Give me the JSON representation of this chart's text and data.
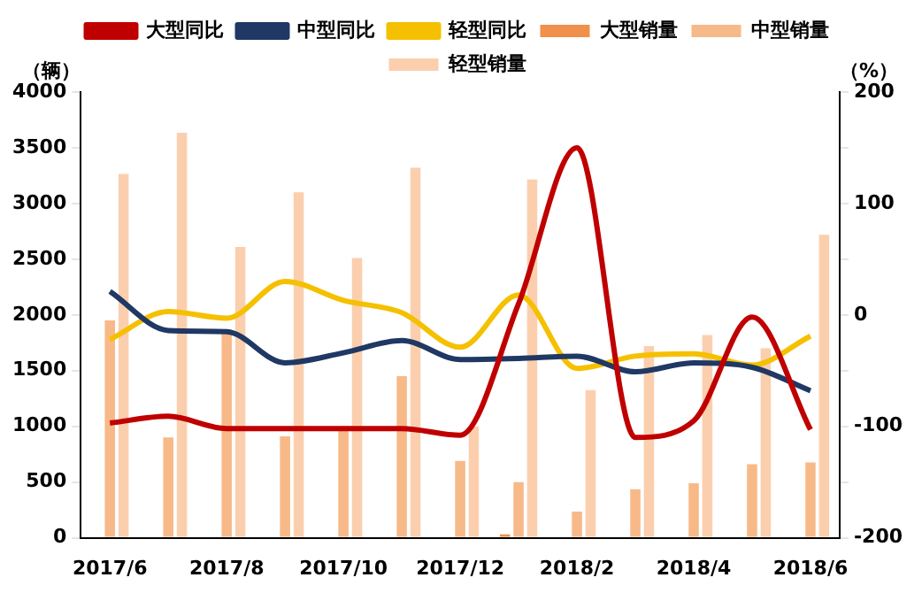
{
  "chart_data": {
    "type": "bar",
    "ylabel": "（辆）",
    "y2label": "（%）",
    "categories": [
      "2017/6",
      null,
      "2017/8",
      null,
      "2017/10",
      null,
      "2017/12",
      null,
      "2018/2",
      null,
      "2018/4",
      null,
      "2018/6"
    ],
    "series": [
      {
        "name": "大型销量",
        "color": "#f0904a",
        "values": [
          0,
          0,
          0,
          0,
          0,
          0,
          0,
          30,
          0,
          0,
          0,
          0,
          0
        ]
      },
      {
        "name": "中型销量",
        "color": "#f8b988",
        "values": [
          1950,
          900,
          1850,
          910,
          1000,
          1450,
          690,
          500,
          235,
          435,
          490,
          660,
          675
        ]
      },
      {
        "name": "轻型销量",
        "color": "#fbcfae",
        "values": [
          3265,
          3635,
          2610,
          3100,
          2510,
          3320,
          1000,
          3215,
          1325,
          1720,
          1820,
          1700,
          2720
        ]
      },
      {
        "name": "大型同比",
        "type": "line",
        "axis": "y2",
        "color": "#c00000",
        "values": [
          -97,
          -91,
          -102,
          -102,
          -102,
          -102,
          -108,
          10,
          150,
          -110,
          -95,
          -2,
          -103
        ]
      },
      {
        "name": "中型同比",
        "type": "line",
        "axis": "y2",
        "color": "#1f3864",
        "values": [
          21,
          -14,
          -15,
          -43,
          -34,
          -23,
          -40,
          -39,
          -37,
          -51,
          -43,
          -47,
          -68
        ]
      },
      {
        "name": "轻型同比",
        "type": "line",
        "axis": "y2",
        "color": "#f5c000",
        "values": [
          -22,
          3,
          -3,
          30,
          13,
          2,
          -29,
          18,
          -48,
          -37,
          -35,
          -45,
          -19
        ]
      }
    ],
    "ylim": [
      0,
      4000
    ],
    "yticks": [
      0,
      500,
      1000,
      1500,
      2000,
      2500,
      3000,
      3500,
      4000
    ],
    "y2lim": [
      -200,
      200
    ],
    "y2ticks": [
      -200,
      {
        "value": -150,
        "label": null
      },
      -100,
      {
        "value": -50,
        "label": null
      },
      0,
      {
        "value": 50,
        "label": null
      },
      100,
      {
        "value": 150,
        "label": null
      },
      200
    ],
    "grid": false,
    "legend": "top",
    "marker": "none",
    "line_style": "solid"
  }
}
